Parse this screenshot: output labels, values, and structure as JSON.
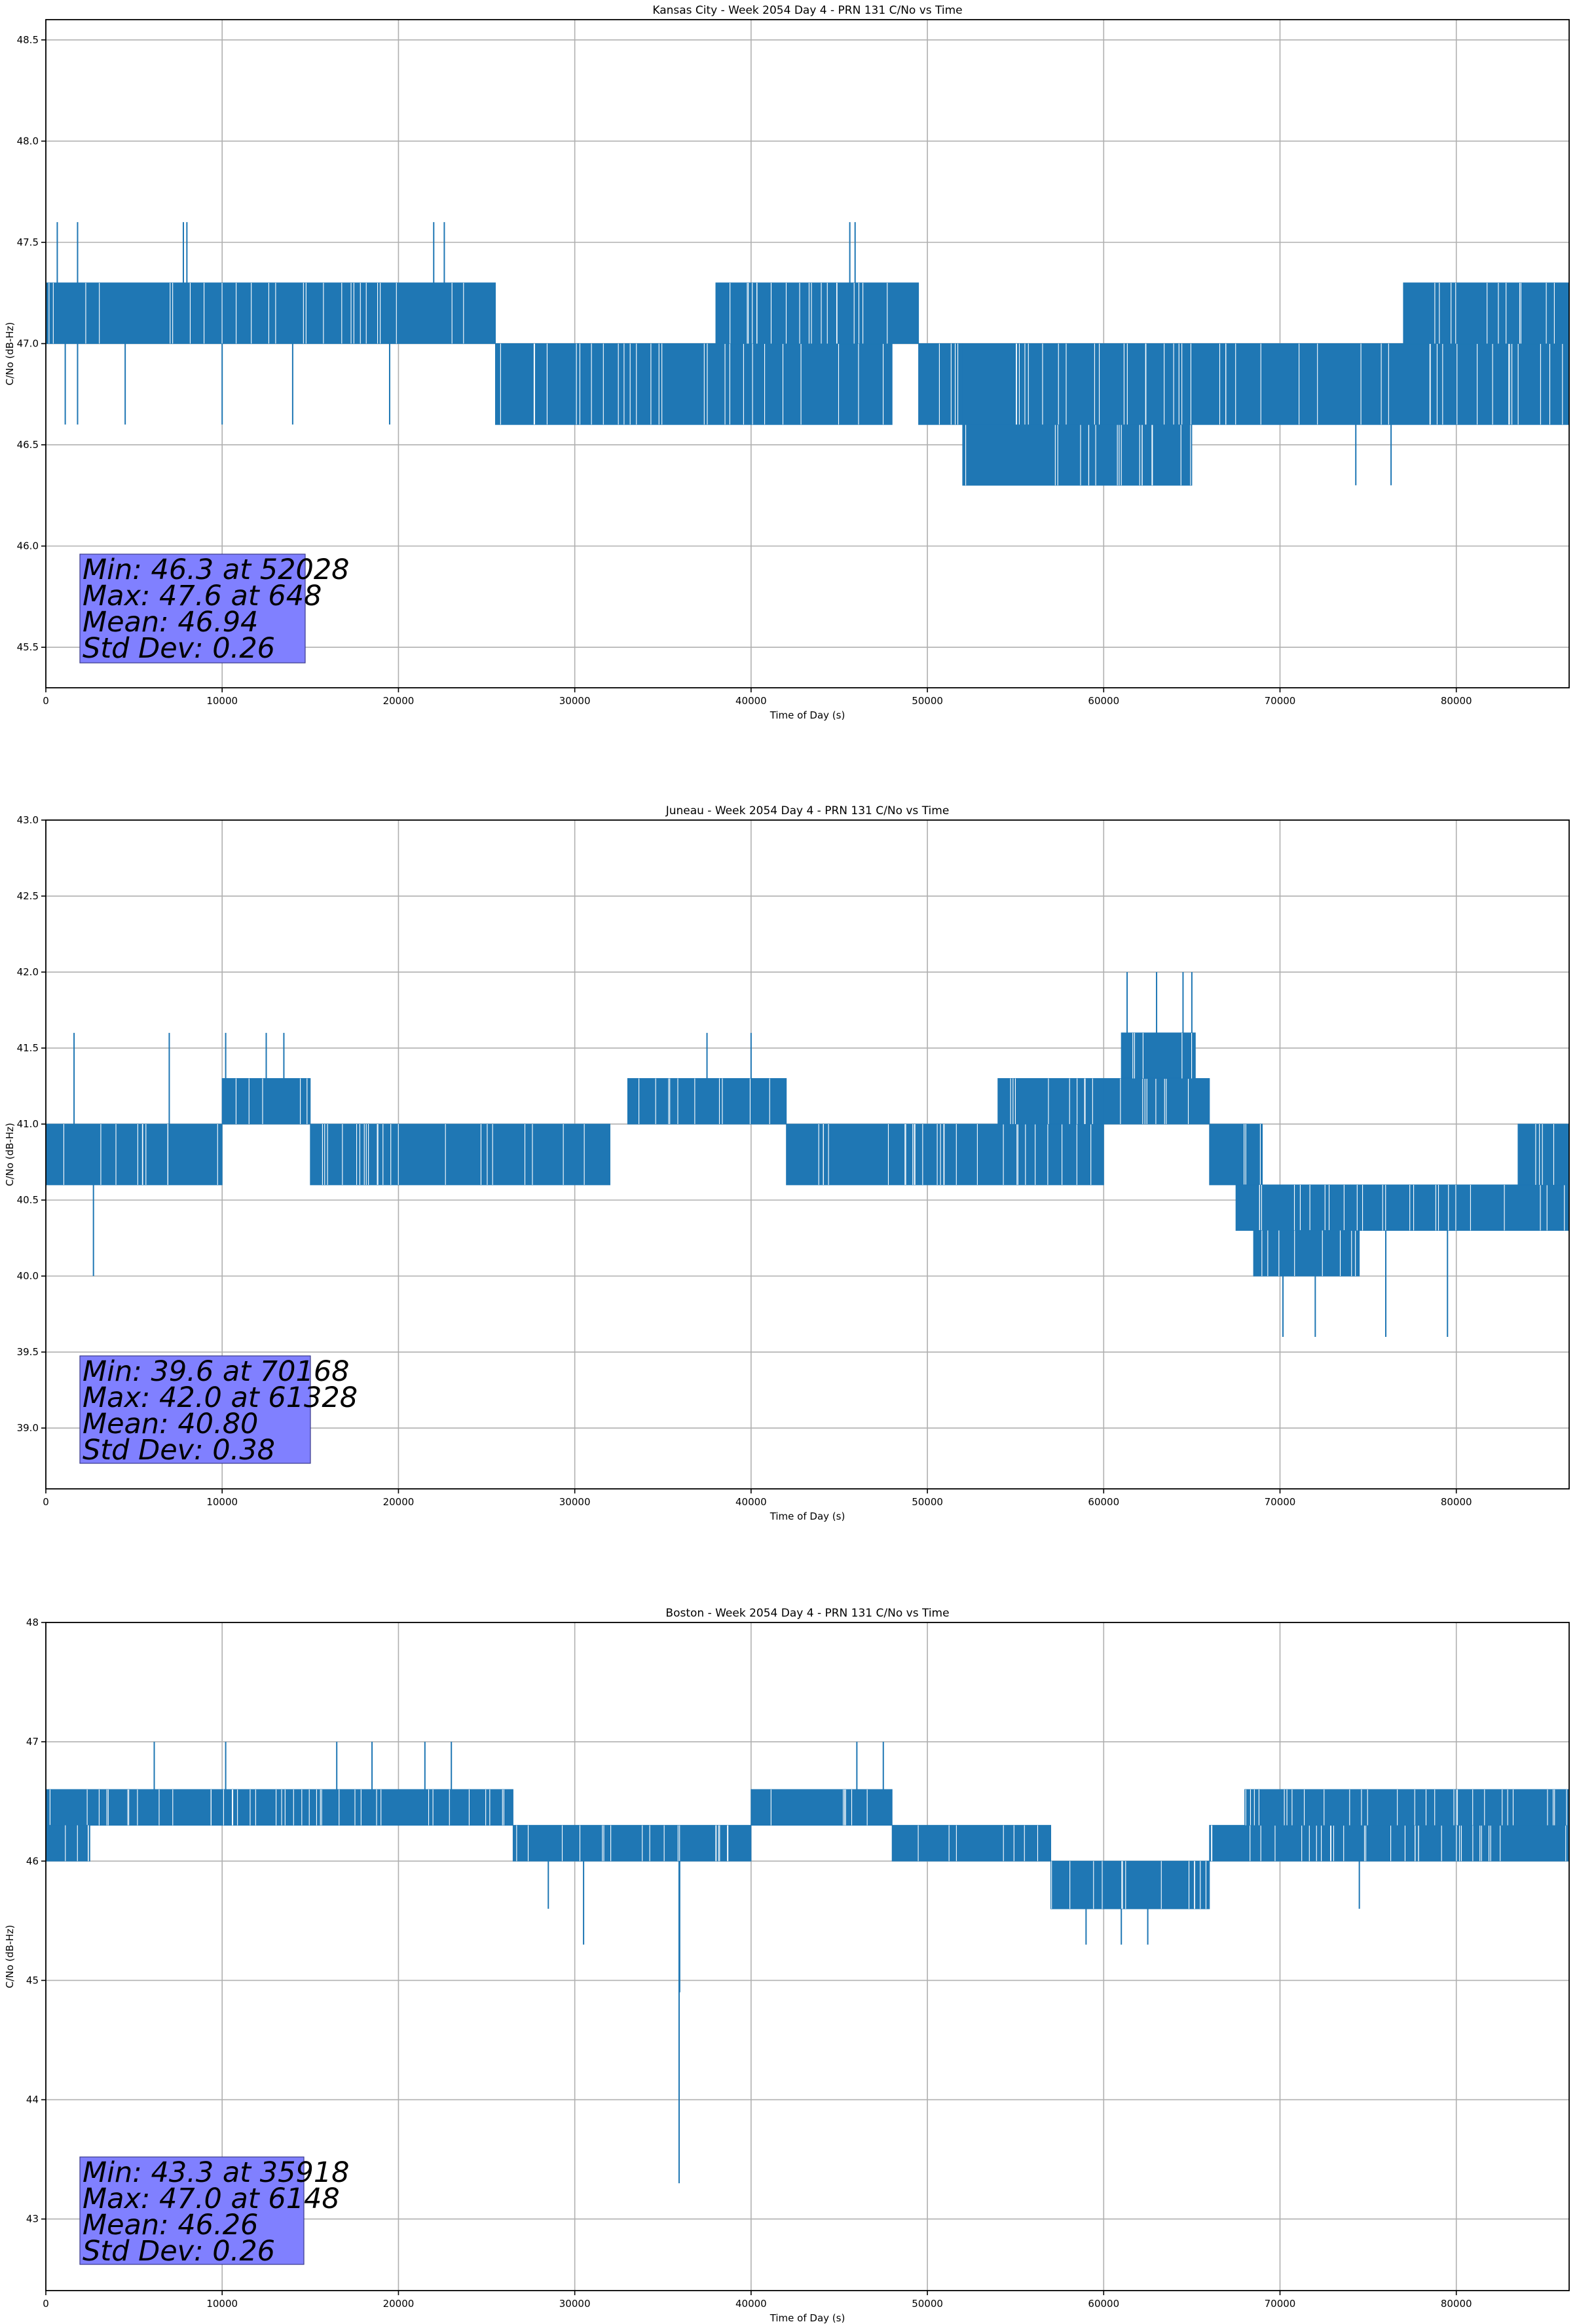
{
  "chart_data": [
    {
      "type": "line",
      "title": "Kansas City - Week 2054 Day 4 - PRN 131 C/No vs Time",
      "xlabel": "Time of Day (s)",
      "ylabel": "C/No (dB-Hz)",
      "xlim": [
        0,
        86400
      ],
      "ylim": [
        45.3,
        48.6
      ],
      "xticks": [
        0,
        10000,
        20000,
        30000,
        40000,
        50000,
        60000,
        70000,
        80000
      ],
      "yticks": [
        45.5,
        46.0,
        46.5,
        47.0,
        47.5,
        48.0,
        48.5
      ],
      "ytick_labels": [
        "45.5",
        "46.0",
        "46.5",
        "47.0",
        "47.5",
        "48.0",
        "48.5"
      ],
      "grid": true,
      "color": "#1f77b4",
      "stats": [
        "Min: 46.3 at 52028",
        "Max: 47.6 at 648",
        "Mean: 46.94",
        "Std Dev: 0.26"
      ],
      "segments": [
        {
          "x": [
            0,
            25500
          ],
          "band": [
            47.0,
            47.3
          ]
        },
        {
          "x": [
            25500,
            48000
          ],
          "band": [
            46.6,
            47.0
          ]
        },
        {
          "x": [
            38000,
            49500
          ],
          "band": [
            47.0,
            47.3
          ]
        },
        {
          "x": [
            49500,
            52000
          ],
          "band": [
            46.6,
            47.0
          ]
        },
        {
          "x": [
            52000,
            65000
          ],
          "band": [
            46.3,
            46.6
          ]
        },
        {
          "x": [
            52000,
            65000
          ],
          "band": [
            46.6,
            47.0
          ]
        },
        {
          "x": [
            65000,
            86400
          ],
          "band": [
            46.6,
            47.0
          ]
        },
        {
          "x": [
            77000,
            86400
          ],
          "band": [
            47.0,
            47.3
          ]
        }
      ],
      "spikes": [
        [
          648,
          47.6
        ],
        [
          1800,
          47.6
        ],
        [
          7800,
          47.6
        ],
        [
          8000,
          47.6
        ],
        [
          22000,
          47.6
        ],
        [
          22600,
          47.6
        ],
        [
          45600,
          47.6
        ],
        [
          45900,
          47.6
        ],
        [
          1100,
          46.6
        ],
        [
          1800,
          46.6
        ],
        [
          4500,
          46.6
        ],
        [
          10000,
          46.6
        ],
        [
          14000,
          46.6
        ],
        [
          19500,
          46.6
        ],
        [
          74300,
          46.3
        ],
        [
          76300,
          46.3
        ]
      ]
    },
    {
      "type": "line",
      "title": "Juneau - Week 2054 Day 4 - PRN 131 C/No vs Time",
      "xlabel": "Time of Day (s)",
      "ylabel": "C/No (dB-Hz)",
      "xlim": [
        0,
        86400
      ],
      "ylim": [
        38.6,
        43.0
      ],
      "xticks": [
        0,
        10000,
        20000,
        30000,
        40000,
        50000,
        60000,
        70000,
        80000
      ],
      "yticks": [
        39.0,
        39.5,
        40.0,
        40.5,
        41.0,
        41.5,
        42.0,
        42.5,
        43.0
      ],
      "ytick_labels": [
        "39.0",
        "39.5",
        "40.0",
        "40.5",
        "41.0",
        "41.5",
        "42.0",
        "42.5",
        "43.0"
      ],
      "grid": true,
      "color": "#1f77b4",
      "stats": [
        "Min: 39.6 at 70168",
        "Max: 42.0 at 61328",
        "Mean: 40.80",
        "Std Dev: 0.38"
      ],
      "segments": [
        {
          "x": [
            0,
            10000
          ],
          "band": [
            40.6,
            41.0
          ]
        },
        {
          "x": [
            10000,
            15000
          ],
          "band": [
            41.0,
            41.3
          ]
        },
        {
          "x": [
            15000,
            32000
          ],
          "band": [
            40.6,
            41.0
          ]
        },
        {
          "x": [
            33000,
            42000
          ],
          "band": [
            41.0,
            41.3
          ]
        },
        {
          "x": [
            42000,
            60000
          ],
          "band": [
            40.6,
            41.0
          ]
        },
        {
          "x": [
            54000,
            60000
          ],
          "band": [
            41.0,
            41.3
          ]
        },
        {
          "x": [
            60000,
            66000
          ],
          "band": [
            41.0,
            41.3
          ]
        },
        {
          "x": [
            61000,
            65200
          ],
          "band": [
            41.3,
            41.6
          ]
        },
        {
          "x": [
            66000,
            69000
          ],
          "band": [
            40.6,
            41.0
          ]
        },
        {
          "x": [
            67500,
            74000
          ],
          "band": [
            40.3,
            40.6
          ]
        },
        {
          "x": [
            68500,
            74500
          ],
          "band": [
            40.0,
            40.3
          ]
        },
        {
          "x": [
            74000,
            86400
          ],
          "band": [
            40.3,
            40.6
          ]
        },
        {
          "x": [
            83500,
            86400
          ],
          "band": [
            40.6,
            41.0
          ]
        }
      ],
      "spikes": [
        [
          2700,
          40.0
        ],
        [
          1600,
          41.6
        ],
        [
          7000,
          41.6
        ],
        [
          10200,
          41.6
        ],
        [
          12500,
          41.6
        ],
        [
          13500,
          41.6
        ],
        [
          37500,
          41.6
        ],
        [
          40000,
          41.6
        ],
        [
          61328,
          42.0
        ],
        [
          63000,
          42.0
        ],
        [
          64500,
          42.0
        ],
        [
          65000,
          42.0
        ],
        [
          70168,
          39.6
        ],
        [
          72000,
          39.6
        ],
        [
          76000,
          39.6
        ],
        [
          79500,
          39.6
        ]
      ]
    },
    {
      "type": "line",
      "title": "Boston - Week 2054 Day 4 - PRN 131 C/No vs Time",
      "xlabel": "Time of Day (s)",
      "ylabel": "C/No (dB-Hz)",
      "xlim": [
        0,
        86400
      ],
      "ylim": [
        42.4,
        48.0
      ],
      "xticks": [
        0,
        10000,
        20000,
        30000,
        40000,
        50000,
        60000,
        70000,
        80000
      ],
      "yticks": [
        43,
        44,
        45,
        46,
        47,
        48
      ],
      "ytick_labels": [
        "43",
        "44",
        "45",
        "46",
        "47",
        "48"
      ],
      "grid": true,
      "color": "#1f77b4",
      "stats": [
        "Min: 43.3 at 35918",
        "Max: 47.0 at 6148",
        "Mean: 46.26",
        "Std Dev: 0.26"
      ],
      "segments": [
        {
          "x": [
            0,
            26500
          ],
          "band": [
            46.3,
            46.6
          ]
        },
        {
          "x": [
            0,
            2500
          ],
          "band": [
            46.0,
            46.3
          ]
        },
        {
          "x": [
            26500,
            40000
          ],
          "band": [
            46.0,
            46.3
          ]
        },
        {
          "x": [
            40000,
            48000
          ],
          "band": [
            46.3,
            46.6
          ]
        },
        {
          "x": [
            48000,
            57000
          ],
          "band": [
            46.0,
            46.3
          ]
        },
        {
          "x": [
            57000,
            66000
          ],
          "band": [
            45.6,
            46.0
          ]
        },
        {
          "x": [
            66000,
            86400
          ],
          "band": [
            46.0,
            46.3
          ]
        },
        {
          "x": [
            68000,
            86400
          ],
          "band": [
            46.3,
            46.6
          ]
        }
      ],
      "spikes": [
        [
          6148,
          47.0
        ],
        [
          10200,
          47.0
        ],
        [
          16500,
          47.0
        ],
        [
          18500,
          47.0
        ],
        [
          21500,
          47.0
        ],
        [
          23000,
          47.0
        ],
        [
          46000,
          47.0
        ],
        [
          47500,
          47.0
        ],
        [
          35918,
          43.3
        ],
        [
          35950,
          44.9
        ],
        [
          30500,
          45.3
        ],
        [
          59000,
          45.3
        ],
        [
          61000,
          45.3
        ],
        [
          62500,
          45.3
        ],
        [
          74500,
          45.6
        ],
        [
          28500,
          45.6
        ]
      ]
    }
  ]
}
